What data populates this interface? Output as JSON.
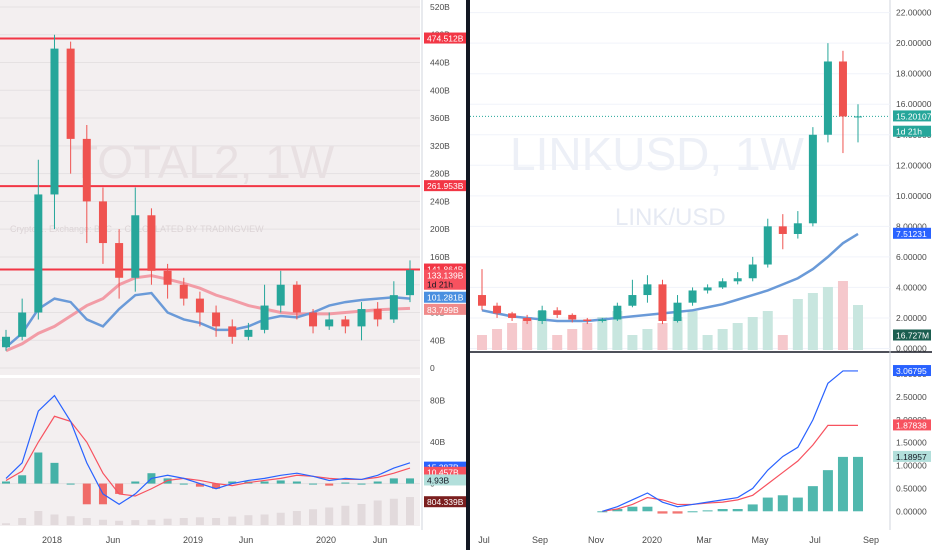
{
  "chart_data": [
    {
      "type": "candlestick",
      "watermark": "TOTAL2, 1W",
      "subtitle": "Crypto ... Exchange: BTC ... CALCULATED BY TRADINGVIEW",
      "x_tick_labels": [
        "2018",
        "Jun",
        "2019",
        "Jun",
        "2020",
        "Jun"
      ],
      "y_axis": {
        "unit": "B",
        "ticks": [
          0,
          40,
          80,
          120,
          160,
          200,
          240,
          280,
          320,
          360,
          400,
          440,
          480,
          520
        ],
        "ylim": [
          -10,
          530
        ]
      },
      "horizontal_levels": [
        474.512,
        261.953,
        141.864
      ],
      "price_labels": [
        {
          "text": "474.512B",
          "color": "#f23645"
        },
        {
          "text": "261.953B",
          "color": "#f23645"
        },
        {
          "text": "141.864B",
          "color": "#f23645"
        },
        {
          "text": "133.139B",
          "color": "#f7525f"
        },
        {
          "text": "1d 21h",
          "color": "#f7525f"
        },
        {
          "text": "101.281B",
          "color": "#4a8fe0"
        },
        {
          "text": "83.799B",
          "color": "#f08a8a"
        }
      ],
      "ma_fast": {
        "color": "#6a9ad8",
        "values": [
          30,
          50,
          85,
          100,
          95,
          70,
          60,
          85,
          105,
          108,
          80,
          70,
          65,
          55,
          55,
          60,
          70,
          75,
          73,
          80,
          90,
          95,
          98,
          100,
          102,
          100
        ]
      },
      "ma_slow": {
        "color": "#f29ca6",
        "values": [
          25,
          35,
          50,
          60,
          75,
          90,
          100,
          120,
          130,
          133,
          128,
          122,
          115,
          105,
          98,
          90,
          85,
          80,
          78,
          78,
          78,
          80,
          82,
          84,
          85,
          86
        ]
      },
      "candles": [
        {
          "o": 30,
          "c": 45,
          "h": 55,
          "l": 25
        },
        {
          "o": 45,
          "c": 80,
          "h": 100,
          "l": 40
        },
        {
          "o": 80,
          "c": 250,
          "h": 300,
          "l": 70
        },
        {
          "o": 250,
          "c": 460,
          "h": 480,
          "l": 200
        },
        {
          "o": 460,
          "c": 330,
          "h": 470,
          "l": 280
        },
        {
          "o": 330,
          "c": 240,
          "h": 350,
          "l": 180
        },
        {
          "o": 240,
          "c": 180,
          "h": 260,
          "l": 150
        },
        {
          "o": 180,
          "c": 130,
          "h": 200,
          "l": 100
        },
        {
          "o": 130,
          "c": 220,
          "h": 260,
          "l": 110
        },
        {
          "o": 220,
          "c": 140,
          "h": 230,
          "l": 120
        },
        {
          "o": 140,
          "c": 120,
          "h": 150,
          "l": 100
        },
        {
          "o": 120,
          "c": 100,
          "h": 130,
          "l": 90
        },
        {
          "o": 100,
          "c": 80,
          "h": 110,
          "l": 60
        },
        {
          "o": 80,
          "c": 60,
          "h": 90,
          "l": 45
        },
        {
          "o": 60,
          "c": 45,
          "h": 70,
          "l": 35
        },
        {
          "o": 45,
          "c": 55,
          "h": 65,
          "l": 40
        },
        {
          "o": 55,
          "c": 90,
          "h": 120,
          "l": 50
        },
        {
          "o": 90,
          "c": 120,
          "h": 140,
          "l": 80
        },
        {
          "o": 120,
          "c": 80,
          "h": 125,
          "l": 70
        },
        {
          "o": 80,
          "c": 60,
          "h": 85,
          "l": 50
        },
        {
          "o": 60,
          "c": 70,
          "h": 80,
          "l": 55
        },
        {
          "o": 70,
          "c": 60,
          "h": 75,
          "l": 50
        },
        {
          "o": 60,
          "c": 85,
          "h": 95,
          "l": 40
        },
        {
          "o": 85,
          "c": 70,
          "h": 95,
          "l": 60
        },
        {
          "o": 70,
          "c": 105,
          "h": 125,
          "l": 65
        },
        {
          "o": 105,
          "c": 141,
          "h": 155,
          "l": 95
        }
      ],
      "macd": {
        "y_ticks": [
          0,
          40,
          80
        ],
        "labels": [
          {
            "text": "15.387B",
            "color": "#2962ff"
          },
          {
            "text": "10.457B",
            "color": "#f7525f"
          },
          {
            "text": "4.93B",
            "color": "#b2dfdb"
          },
          {
            "text": "804.339B",
            "color": "#7b1f1f"
          }
        ],
        "macd_line": [
          5,
          20,
          70,
          85,
          60,
          20,
          -10,
          -20,
          -10,
          5,
          8,
          5,
          0,
          -5,
          0,
          3,
          5,
          8,
          10,
          7,
          3,
          5,
          4,
          8,
          15,
          20
        ],
        "signal_line": [
          3,
          12,
          40,
          65,
          60,
          40,
          10,
          -10,
          -12,
          -5,
          3,
          5,
          3,
          0,
          -2,
          1,
          3,
          5,
          8,
          7,
          5,
          4,
          4,
          6,
          10,
          15
        ],
        "histogram": [
          2,
          8,
          30,
          20,
          0,
          -20,
          -20,
          -10,
          2,
          10,
          5,
          0,
          -3,
          -5,
          2,
          2,
          2,
          3,
          2,
          0,
          -2,
          1,
          0,
          2,
          5,
          5
        ],
        "volume": [
          5,
          20,
          40,
          30,
          25,
          20,
          15,
          12,
          14,
          15,
          18,
          20,
          22,
          20,
          24,
          28,
          30,
          35,
          40,
          45,
          50,
          55,
          60,
          70,
          75,
          80
        ]
      }
    },
    {
      "type": "candlestick",
      "watermark": "LINKUSD, 1W",
      "subtitle": "LINK/USD",
      "x_tick_labels": [
        "Jul",
        "Sep",
        "Nov",
        "2020",
        "Mar",
        "May",
        "Jul",
        "Sep"
      ],
      "y_axis": {
        "ticks": [
          "0.00000",
          "2.00000",
          "4.00000",
          "6.00000",
          "8.00000",
          "10.00000",
          "12.00000",
          "14.00000",
          "16.00000",
          "18.00000",
          "20.00000",
          "22.00000"
        ],
        "ylim": [
          -0.1,
          22.5
        ]
      },
      "horizontal_levels": [
        15.20107
      ],
      "price_labels": [
        {
          "text": "15.20107",
          "color": "#26a69a"
        },
        {
          "text": "1d 21h",
          "color": "#26a69a"
        },
        {
          "text": "7.51231",
          "color": "#2962ff"
        },
        {
          "text": "16.727M",
          "color": "#1b5e50"
        }
      ],
      "ma": {
        "color": "#6a9ad8",
        "values": [
          2.5,
          2.3,
          2.1,
          2,
          1.9,
          1.8,
          1.8,
          1.8,
          1.9,
          2,
          2.1,
          2.2,
          2.3,
          2.4,
          2.5,
          2.7,
          2.9,
          3.2,
          3.5,
          3.8,
          4.2,
          4.6,
          5.2,
          6,
          6.9,
          7.5
        ]
      },
      "candles": [
        {
          "o": 3.5,
          "c": 2.8,
          "h": 5.2,
          "l": 2.5
        },
        {
          "o": 2.8,
          "c": 2.3,
          "h": 3.0,
          "l": 2.0
        },
        {
          "o": 2.3,
          "c": 2.0,
          "h": 2.4,
          "l": 1.8
        },
        {
          "o": 2.0,
          "c": 1.8,
          "h": 2.2,
          "l": 1.6
        },
        {
          "o": 1.8,
          "c": 2.5,
          "h": 2.8,
          "l": 1.6
        },
        {
          "o": 2.5,
          "c": 2.2,
          "h": 2.7,
          "l": 2.0
        },
        {
          "o": 2.2,
          "c": 1.9,
          "h": 2.3,
          "l": 1.7
        },
        {
          "o": 1.9,
          "c": 1.8,
          "h": 2.0,
          "l": 1.6
        },
        {
          "o": 1.8,
          "c": 1.9,
          "h": 2.0,
          "l": 1.7
        },
        {
          "o": 1.9,
          "c": 2.8,
          "h": 3.0,
          "l": 1.8
        },
        {
          "o": 2.8,
          "c": 3.5,
          "h": 4.5,
          "l": 2.7
        },
        {
          "o": 3.5,
          "c": 4.2,
          "h": 4.8,
          "l": 3.0
        },
        {
          "o": 4.2,
          "c": 1.8,
          "h": 4.5,
          "l": 1.6
        },
        {
          "o": 1.8,
          "c": 3.0,
          "h": 3.5,
          "l": 1.7
        },
        {
          "o": 3.0,
          "c": 3.8,
          "h": 4.0,
          "l": 2.8
        },
        {
          "o": 3.8,
          "c": 4.0,
          "h": 4.2,
          "l": 3.6
        },
        {
          "o": 4.0,
          "c": 4.4,
          "h": 4.6,
          "l": 3.9
        },
        {
          "o": 4.4,
          "c": 4.6,
          "h": 5.0,
          "l": 4.2
        },
        {
          "o": 4.6,
          "c": 5.5,
          "h": 6.0,
          "l": 4.4
        },
        {
          "o": 5.5,
          "c": 8.0,
          "h": 8.5,
          "l": 5.3
        },
        {
          "o": 8.0,
          "c": 7.5,
          "h": 8.8,
          "l": 6.5
        },
        {
          "o": 7.5,
          "c": 8.2,
          "h": 9.0,
          "l": 7.2
        },
        {
          "o": 8.2,
          "c": 14.0,
          "h": 14.5,
          "l": 8.0
        },
        {
          "o": 14.0,
          "c": 18.8,
          "h": 20.0,
          "l": 13.5
        },
        {
          "o": 18.8,
          "c": 15.2,
          "h": 19.5,
          "l": 12.8
        },
        {
          "o": 15.2,
          "c": 15.2,
          "h": 16.0,
          "l": 13.5
        }
      ],
      "macd": {
        "y_ticks": [
          "0.00000",
          "0.50000",
          "1.00000",
          "1.50000",
          "2.00000",
          "2.50000",
          "3.00000"
        ],
        "labels": [
          {
            "text": "3.06795",
            "color": "#2962ff"
          },
          {
            "text": "1.87838",
            "color": "#f7525f"
          },
          {
            "text": "1.18957",
            "color": "#b2dfdb"
          }
        ],
        "macd_line": [
          null,
          null,
          null,
          null,
          null,
          null,
          null,
          null,
          0.0,
          0.1,
          0.25,
          0.4,
          0.2,
          0.1,
          0.15,
          0.2,
          0.25,
          0.3,
          0.5,
          0.9,
          1.2,
          1.4,
          2.0,
          2.8,
          3.07,
          3.07
        ],
        "signal_line": [
          null,
          null,
          null,
          null,
          null,
          null,
          null,
          null,
          0.0,
          0.05,
          0.15,
          0.3,
          0.25,
          0.15,
          0.15,
          0.18,
          0.2,
          0.25,
          0.35,
          0.6,
          0.85,
          1.1,
          1.45,
          1.88,
          1.88,
          1.88
        ],
        "histogram": [
          null,
          null,
          null,
          null,
          null,
          null,
          null,
          null,
          0,
          0.05,
          0.1,
          0.1,
          -0.05,
          -0.05,
          0,
          0.02,
          0.05,
          0.05,
          0.15,
          0.3,
          0.35,
          0.3,
          0.55,
          0.9,
          1.19,
          1.19
        ]
      }
    }
  ]
}
